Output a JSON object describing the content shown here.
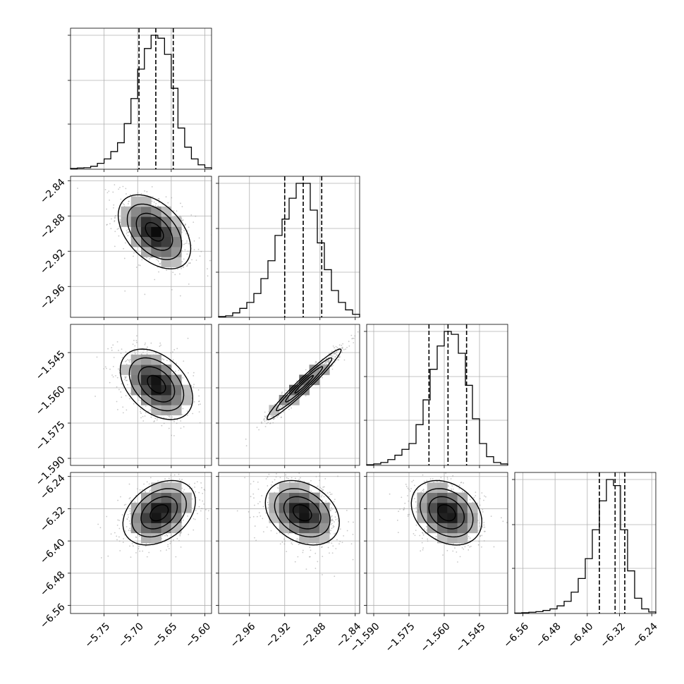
{
  "chart_data": {
    "type": "corner",
    "parameters": [
      {
        "range": [
          -5.8,
          -5.59
        ],
        "ticks": [
          -5.75,
          -5.7,
          -5.65,
          -5.6
        ],
        "tick_labels": [
          "−5.75",
          "−5.70",
          "−5.65",
          "−5.60"
        ],
        "hist_x": [
          -5.8,
          -5.79,
          -5.78,
          -5.77,
          -5.76,
          -5.75,
          -5.74,
          -5.73,
          -5.72,
          -5.71,
          -5.7,
          -5.69,
          -5.68,
          -5.67,
          -5.66,
          -5.65,
          -5.64,
          -5.63,
          -5.62,
          -5.61,
          -5.6,
          -5.59
        ],
        "hist_counts": [
          0.005,
          0.008,
          0.01,
          0.02,
          0.04,
          0.07,
          0.12,
          0.18,
          0.31,
          0.48,
          0.68,
          0.82,
          0.91,
          0.89,
          0.78,
          0.55,
          0.28,
          0.15,
          0.07,
          0.03,
          0.01
        ],
        "quantiles": [
          -5.698,
          -5.673,
          -5.647
        ]
      },
      {
        "range": [
          -2.995,
          -2.835
        ],
        "ticks": [
          -2.96,
          -2.92,
          -2.88,
          -2.84
        ],
        "tick_labels": [
          "−2.96",
          "−2.92",
          "−2.88",
          "−2.84"
        ],
        "hist_x": [
          -2.995,
          -2.987,
          -2.979,
          -2.971,
          -2.963,
          -2.955,
          -2.947,
          -2.939,
          -2.931,
          -2.923,
          -2.915,
          -2.907,
          -2.899,
          -2.891,
          -2.883,
          -2.875,
          -2.867,
          -2.859,
          -2.851,
          -2.843,
          -2.835
        ],
        "hist_counts": [
          0.005,
          0.01,
          0.03,
          0.06,
          0.1,
          0.16,
          0.26,
          0.38,
          0.55,
          0.66,
          0.8,
          0.9,
          0.9,
          0.72,
          0.5,
          0.32,
          0.18,
          0.1,
          0.05,
          0.02
        ],
        "quantiles": [
          -2.92,
          -2.899,
          -2.878
        ]
      },
      {
        "range": [
          -1.593,
          -1.533
        ],
        "ticks": [
          -1.59,
          -1.575,
          -1.56,
          -1.545
        ],
        "tick_labels": [
          "−1.590",
          "−1.575",
          "−1.560",
          "−1.545"
        ],
        "hist_x": [
          -1.593,
          -1.59,
          -1.587,
          -1.584,
          -1.581,
          -1.578,
          -1.575,
          -1.572,
          -1.569,
          -1.566,
          -1.563,
          -1.56,
          -1.557,
          -1.554,
          -1.551,
          -1.548,
          -1.545,
          -1.542,
          -1.539,
          -1.536,
          -1.533
        ],
        "hist_counts": [
          0.005,
          0.01,
          0.02,
          0.04,
          0.07,
          0.11,
          0.15,
          0.28,
          0.45,
          0.66,
          0.82,
          0.92,
          0.9,
          0.77,
          0.55,
          0.32,
          0.15,
          0.06,
          0.02,
          0.01
        ],
        "quantiles": [
          -1.5665,
          -1.5584,
          -1.5505
        ]
      },
      {
        "range": [
          -6.58,
          -6.23
        ],
        "ticks": [
          -6.56,
          -6.48,
          -6.4,
          -6.32,
          -6.24
        ],
        "tick_labels": [
          "−6.56",
          "−6.48",
          "−6.40",
          "−6.32",
          "−6.24"
        ],
        "hist_x": [
          -6.58,
          -6.5625,
          -6.545,
          -6.5275,
          -6.51,
          -6.4925,
          -6.475,
          -6.4575,
          -6.44,
          -6.4225,
          -6.405,
          -6.3875,
          -6.37,
          -6.3525,
          -6.335,
          -6.3175,
          -6.3,
          -6.2825,
          -6.265,
          -6.2475,
          -6.23
        ],
        "hist_counts": [
          0.003,
          0.005,
          0.008,
          0.012,
          0.02,
          0.03,
          0.05,
          0.08,
          0.14,
          0.23,
          0.36,
          0.55,
          0.74,
          0.88,
          0.84,
          0.55,
          0.28,
          0.1,
          0.03,
          0.01
        ],
        "quantiles": [
          -6.37,
          -6.331,
          -6.307
        ]
      }
    ],
    "pairs": [
      {
        "row": 1,
        "col": 0,
        "mean": [
          -5.675,
          -2.898
        ],
        "sd": [
          0.027,
          0.021
        ],
        "rho": -0.45
      },
      {
        "row": 2,
        "col": 0,
        "mean": [
          -5.672,
          -1.5585
        ],
        "sd": [
          0.027,
          0.0075
        ],
        "rho": -0.4
      },
      {
        "row": 2,
        "col": 1,
        "mean": [
          -2.898,
          -1.5585
        ],
        "sd": [
          0.021,
          0.0075
        ],
        "rho": 0.97
      },
      {
        "row": 3,
        "col": 0,
        "mean": [
          -5.668,
          -6.33
        ],
        "sd": [
          0.027,
          0.04
        ],
        "rho": 0.35
      },
      {
        "row": 3,
        "col": 1,
        "mean": [
          -2.9,
          -6.33
        ],
        "sd": [
          0.021,
          0.04
        ],
        "rho": -0.3
      },
      {
        "row": 3,
        "col": 2,
        "mean": [
          -1.559,
          -6.33
        ],
        "sd": [
          0.0075,
          0.04
        ],
        "rho": -0.28
      }
    ],
    "grid": true,
    "quantile_linestyle": "dashed"
  }
}
